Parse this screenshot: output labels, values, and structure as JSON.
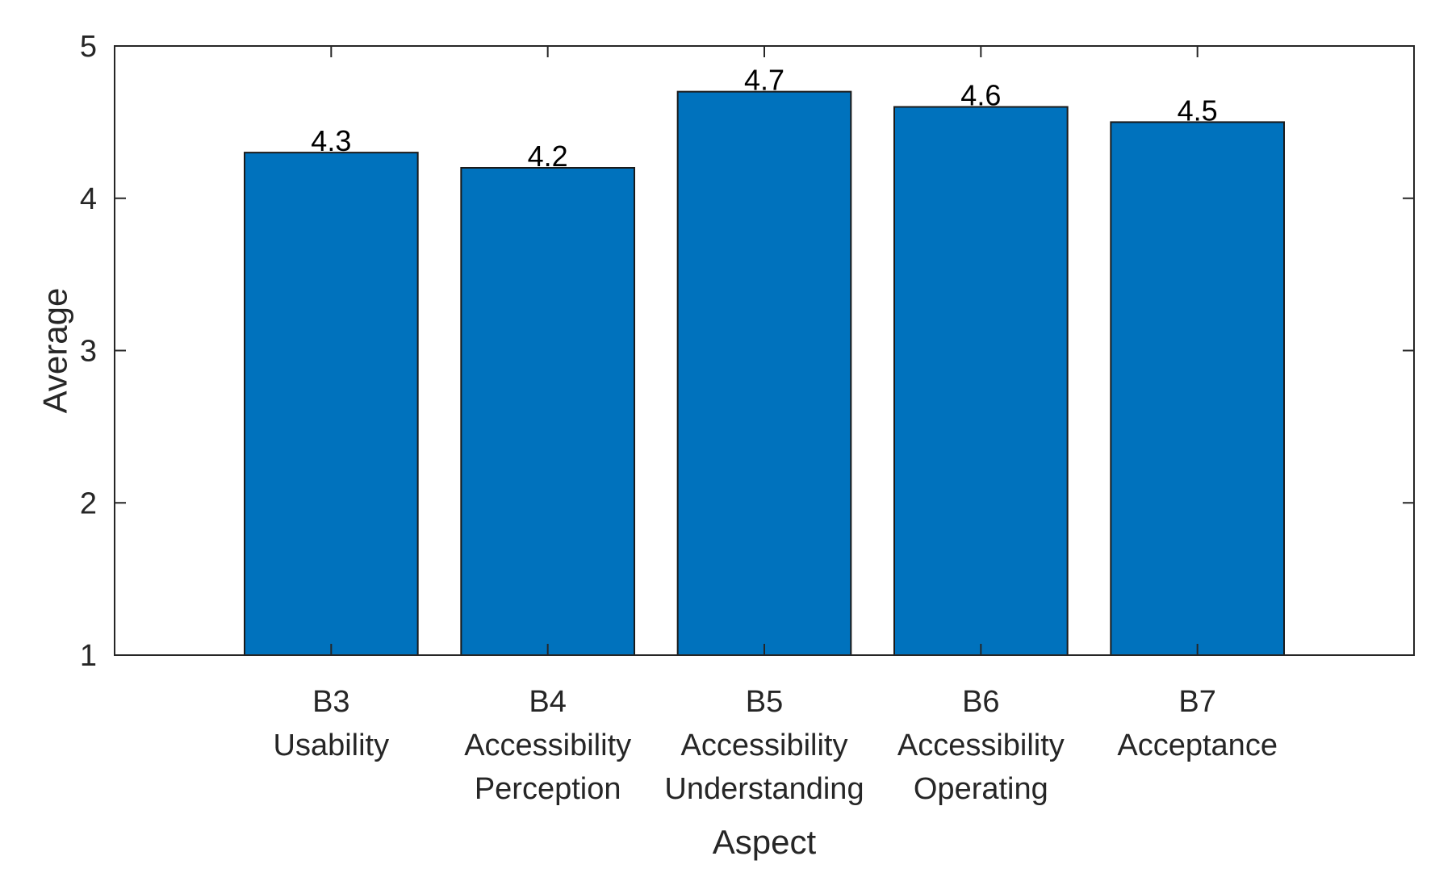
{
  "chart_data": {
    "type": "bar",
    "categories": [
      [
        "B3",
        "Usability"
      ],
      [
        "B4",
        "Accessibility",
        "Perception"
      ],
      [
        "B5",
        "Accessibility",
        "Understanding"
      ],
      [
        "B6",
        "Accessibility",
        "Operating"
      ],
      [
        "B7",
        "Acceptance"
      ]
    ],
    "values": [
      4.3,
      4.2,
      4.7,
      4.6,
      4.5
    ],
    "data_labels": [
      "4.3",
      "4.2",
      "4.7",
      "4.6",
      "4.5"
    ],
    "title": "",
    "xlabel": "Aspect",
    "ylabel": "Average",
    "ylim": [
      1,
      5
    ],
    "yticks": [
      1,
      2,
      3,
      4,
      5
    ],
    "xlim": [
      0,
      6
    ],
    "grid": false,
    "bar_color": "#0072BD",
    "edge_color": "#1a1a1a",
    "axis_color": "#262626"
  }
}
